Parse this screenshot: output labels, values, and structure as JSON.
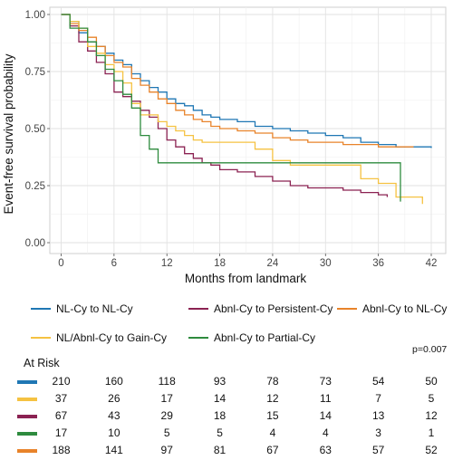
{
  "chart_data": {
    "type": "line",
    "subtype": "kaplan-meier",
    "ylabel": "Event-free survival probability",
    "xlabel": "Months from landmark",
    "xlim": [
      0,
      43
    ],
    "ylim": [
      0,
      1
    ],
    "x_ticks": [
      0,
      6,
      12,
      18,
      24,
      30,
      36,
      42
    ],
    "y_ticks": [
      0.0,
      0.25,
      0.5,
      0.75,
      1.0
    ],
    "y_tick_labels": [
      "0.00",
      "0.25",
      "0.50",
      "0.75",
      "1.00"
    ],
    "grid": true,
    "legend_position": "bottom",
    "series": [
      {
        "name": "NL-Cy to NL-Cy",
        "color": "#1f77b4",
        "points": [
          [
            0,
            1.0
          ],
          [
            1,
            0.97
          ],
          [
            2,
            0.92
          ],
          [
            3,
            0.88
          ],
          [
            4,
            0.86
          ],
          [
            5,
            0.83
          ],
          [
            6,
            0.8
          ],
          [
            7,
            0.78
          ],
          [
            8,
            0.74
          ],
          [
            9,
            0.71
          ],
          [
            10,
            0.68
          ],
          [
            11,
            0.66
          ],
          [
            12,
            0.63
          ],
          [
            13,
            0.61
          ],
          [
            14,
            0.6
          ],
          [
            15,
            0.58
          ],
          [
            16,
            0.56
          ],
          [
            17,
            0.55
          ],
          [
            18,
            0.54
          ],
          [
            20,
            0.53
          ],
          [
            22,
            0.51
          ],
          [
            24,
            0.5
          ],
          [
            26,
            0.49
          ],
          [
            28,
            0.48
          ],
          [
            30,
            0.47
          ],
          [
            32,
            0.46
          ],
          [
            34,
            0.44
          ],
          [
            36,
            0.43
          ],
          [
            38,
            0.42
          ],
          [
            40,
            0.42
          ],
          [
            42,
            0.415
          ]
        ]
      },
      {
        "name": "Abnl-Cy to Persistent-Cy",
        "color": "#8b2252",
        "points": [
          [
            0,
            1.0
          ],
          [
            1,
            0.95
          ],
          [
            2,
            0.88
          ],
          [
            3,
            0.84
          ],
          [
            4,
            0.79
          ],
          [
            5,
            0.74
          ],
          [
            6,
            0.66
          ],
          [
            7,
            0.64
          ],
          [
            8,
            0.62
          ],
          [
            9,
            0.58
          ],
          [
            10,
            0.55
          ],
          [
            11,
            0.5
          ],
          [
            12,
            0.45
          ],
          [
            13,
            0.42
          ],
          [
            14,
            0.39
          ],
          [
            15,
            0.37
          ],
          [
            16,
            0.35
          ],
          [
            17,
            0.34
          ],
          [
            18,
            0.32
          ],
          [
            20,
            0.31
          ],
          [
            22,
            0.29
          ],
          [
            24,
            0.27
          ],
          [
            26,
            0.25
          ],
          [
            28,
            0.24
          ],
          [
            30,
            0.24
          ],
          [
            32,
            0.23
          ],
          [
            34,
            0.22
          ],
          [
            36,
            0.21
          ],
          [
            37,
            0.2
          ]
        ]
      },
      {
        "name": "Abnl-Cy to NL-Cy",
        "color": "#e8832a",
        "points": [
          [
            0,
            1.0
          ],
          [
            1,
            0.96
          ],
          [
            2,
            0.93
          ],
          [
            3,
            0.9
          ],
          [
            4,
            0.86
          ],
          [
            5,
            0.82
          ],
          [
            6,
            0.79
          ],
          [
            7,
            0.77
          ],
          [
            8,
            0.72
          ],
          [
            9,
            0.69
          ],
          [
            10,
            0.66
          ],
          [
            11,
            0.63
          ],
          [
            12,
            0.61
          ],
          [
            13,
            0.58
          ],
          [
            14,
            0.56
          ],
          [
            15,
            0.54
          ],
          [
            16,
            0.53
          ],
          [
            17,
            0.51
          ],
          [
            18,
            0.5
          ],
          [
            20,
            0.49
          ],
          [
            22,
            0.48
          ],
          [
            24,
            0.46
          ],
          [
            26,
            0.45
          ],
          [
            28,
            0.44
          ],
          [
            30,
            0.44
          ],
          [
            32,
            0.43
          ],
          [
            34,
            0.43
          ],
          [
            36,
            0.42
          ],
          [
            38,
            0.42
          ],
          [
            40,
            0.42
          ]
        ]
      },
      {
        "name": "NL/Abnl-Cy to Gain-Cy",
        "color": "#f5c242",
        "points": [
          [
            0,
            1.0
          ],
          [
            1,
            0.97
          ],
          [
            2,
            0.94
          ],
          [
            3,
            0.86
          ],
          [
            4,
            0.83
          ],
          [
            5,
            0.78
          ],
          [
            6,
            0.75
          ],
          [
            7,
            0.7
          ],
          [
            8,
            0.61
          ],
          [
            9,
            0.56
          ],
          [
            10,
            0.56
          ],
          [
            11,
            0.53
          ],
          [
            12,
            0.51
          ],
          [
            13,
            0.49
          ],
          [
            14,
            0.47
          ],
          [
            15,
            0.45
          ],
          [
            16,
            0.44
          ],
          [
            17,
            0.44
          ],
          [
            18,
            0.44
          ],
          [
            20,
            0.44
          ],
          [
            22,
            0.41
          ],
          [
            24,
            0.36
          ],
          [
            26,
            0.34
          ],
          [
            28,
            0.34
          ],
          [
            30,
            0.34
          ],
          [
            32,
            0.34
          ],
          [
            34,
            0.28
          ],
          [
            36,
            0.26
          ],
          [
            38,
            0.2
          ],
          [
            40,
            0.2
          ],
          [
            41,
            0.17
          ]
        ]
      },
      {
        "name": "Abnl-Cy to Partial-Cy",
        "color": "#2e8b3e",
        "points": [
          [
            0,
            1.0
          ],
          [
            1,
            0.94
          ],
          [
            2,
            0.94
          ],
          [
            3,
            0.88
          ],
          [
            4,
            0.82
          ],
          [
            5,
            0.76
          ],
          [
            6,
            0.71
          ],
          [
            7,
            0.65
          ],
          [
            8,
            0.59
          ],
          [
            9,
            0.47
          ],
          [
            10,
            0.41
          ],
          [
            11,
            0.35
          ],
          [
            12,
            0.35
          ],
          [
            14,
            0.35
          ],
          [
            16,
            0.35
          ],
          [
            18,
            0.35
          ],
          [
            20,
            0.35
          ],
          [
            24,
            0.35
          ],
          [
            28,
            0.35
          ],
          [
            32,
            0.35
          ],
          [
            36,
            0.35
          ],
          [
            38,
            0.35
          ],
          [
            38.5,
            0.18
          ]
        ]
      }
    ]
  },
  "legend": {
    "items": [
      {
        "label": "NL-Cy to NL-Cy",
        "color": "#1f77b4"
      },
      {
        "label": "Abnl-Cy to Persistent-Cy",
        "color": "#8b2252"
      },
      {
        "label": "Abnl-Cy to NL-Cy",
        "color": "#e8832a"
      },
      {
        "label": "NL/Abnl-Cy to Gain-Cy",
        "color": "#f5c242"
      },
      {
        "label": "Abnl-Cy to Partial-Cy",
        "color": "#2e8b3e"
      }
    ]
  },
  "pvalue": "p=0.007",
  "at_risk": {
    "title": "At Risk",
    "rows": [
      {
        "color": "#1f77b4",
        "values": [
          "210",
          "160",
          "118",
          "93",
          "78",
          "73",
          "54",
          "50"
        ]
      },
      {
        "color": "#f5c242",
        "values": [
          "37",
          "26",
          "17",
          "14",
          "12",
          "11",
          "7",
          "5"
        ]
      },
      {
        "color": "#8b2252",
        "values": [
          "67",
          "43",
          "29",
          "18",
          "15",
          "14",
          "13",
          "12"
        ]
      },
      {
        "color": "#2e8b3e",
        "values": [
          "17",
          "10",
          "5",
          "5",
          "4",
          "4",
          "3",
          "1"
        ]
      },
      {
        "color": "#e8832a",
        "values": [
          "188",
          "141",
          "97",
          "81",
          "67",
          "63",
          "57",
          "52"
        ]
      }
    ]
  }
}
